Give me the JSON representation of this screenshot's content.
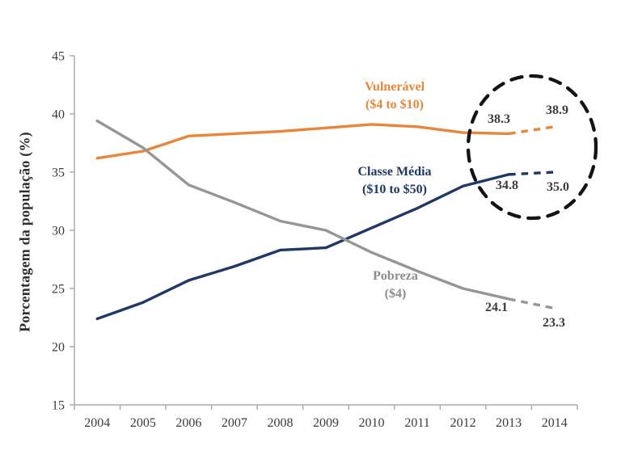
{
  "style": {
    "background": "#FFFFFF",
    "axis_color": "#A8A8A8",
    "tick_label_color": "#3C3C3C",
    "value_label_color": "#3C3C3C",
    "highlight_circle_color": "#141414"
  },
  "chart_data": {
    "type": "line",
    "title": "",
    "xlabel": "",
    "ylabel": "Porcentagem da população (%)",
    "x": [
      "2004",
      "2005",
      "2006",
      "2007",
      "2008",
      "2009",
      "2010",
      "2011",
      "2012",
      "2013",
      "2014"
    ],
    "ylim": [
      15,
      45
    ],
    "yticks": [
      15,
      20,
      25,
      30,
      35,
      40,
      45
    ],
    "grid": false,
    "legend_position": "inline-labels",
    "note": "2014 values are dashed projections highlighted by a dashed circle",
    "series": [
      {
        "name": "Vulnerável",
        "subtitle": "($4 to $10)",
        "color": "#E8873B",
        "values": [
          36.2,
          36.8,
          38.1,
          38.3,
          38.5,
          38.8,
          39.1,
          38.9,
          38.4,
          38.3,
          38.9
        ],
        "dashed_from": "2013",
        "point_labels": {
          "2013": "38.3",
          "2014": "38.9"
        }
      },
      {
        "name": "Classe Média",
        "subtitle": "($10 to $50)",
        "color": "#1F3864",
        "values": [
          22.4,
          23.8,
          25.7,
          26.9,
          28.3,
          28.5,
          30.2,
          31.9,
          33.8,
          34.8,
          35.0
        ],
        "dashed_from": "2013",
        "point_labels": {
          "2013": "34.8",
          "2014": "35.0"
        }
      },
      {
        "name": "Pobreza",
        "subtitle": "($4)",
        "color": "#969696",
        "values": [
          39.4,
          37.1,
          33.9,
          32.4,
          30.8,
          30.0,
          28.1,
          26.5,
          25.0,
          24.1,
          23.3
        ],
        "dashed_from": "2013",
        "point_labels": {
          "2013": "24.1",
          "2014": "23.3"
        }
      }
    ],
    "highlight": {
      "shape": "dashed-ellipse",
      "years": [
        "2013",
        "2014"
      ],
      "color": "#141414"
    }
  }
}
